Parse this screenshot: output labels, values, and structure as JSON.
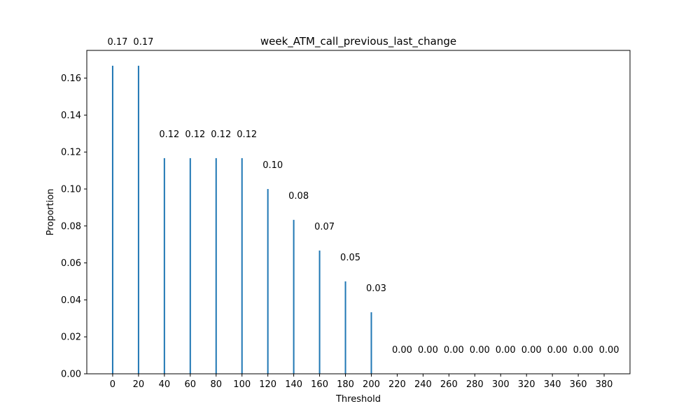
{
  "chart_data": {
    "type": "bar",
    "title": "week_ATM_call_previous_last_change",
    "xlabel": "Threshold",
    "ylabel": "Proportion",
    "x": [
      0,
      20,
      40,
      60,
      80,
      100,
      120,
      140,
      160,
      180,
      200,
      220,
      240,
      260,
      280,
      300,
      320,
      340,
      360,
      380
    ],
    "values": [
      0.1667,
      0.1667,
      0.1167,
      0.1167,
      0.1167,
      0.1167,
      0.1,
      0.0833,
      0.0667,
      0.05,
      0.0333,
      0,
      0,
      0,
      0,
      0,
      0,
      0,
      0,
      0
    ],
    "data_labels": [
      "0.17",
      "0.17",
      "0.12",
      "0.12",
      "0.12",
      "0.12",
      "0.10",
      "0.08",
      "0.07",
      "0.05",
      "0.03",
      "0.00",
      "0.00",
      "0.00",
      "0.00",
      "0.00",
      "0.00",
      "0.00",
      "0.00",
      "0.00"
    ],
    "xticks": [
      "0",
      "20",
      "40",
      "60",
      "80",
      "100",
      "120",
      "140",
      "160",
      "180",
      "200",
      "220",
      "240",
      "260",
      "280",
      "300",
      "320",
      "340",
      "360",
      "380"
    ],
    "yticks": [
      "0.00",
      "0.02",
      "0.04",
      "0.06",
      "0.08",
      "0.10",
      "0.12",
      "0.14",
      "0.16"
    ],
    "ytick_values": [
      0,
      0.02,
      0.04,
      0.06,
      0.08,
      0.1,
      0.12,
      0.14,
      0.16
    ],
    "xlim": [
      -20,
      400
    ],
    "ylim": [
      0,
      0.175
    ],
    "grid": false,
    "bar_color": "#1f77b4"
  }
}
